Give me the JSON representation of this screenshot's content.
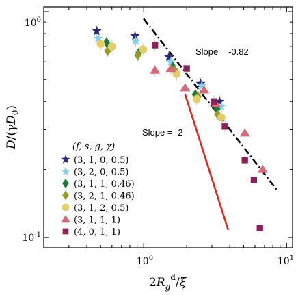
{
  "chart_data": {
    "type": "scatter",
    "title": "",
    "xlabel": "2R_g^d/ξ",
    "ylabel": "D/(γD_0)",
    "xscale": "log",
    "yscale": "log",
    "xlim": [
      0.2,
      11
    ],
    "ylim": [
      0.09,
      1.05
    ],
    "x_ticks": [
      {
        "v": 1,
        "label": "10^0"
      },
      {
        "v": 10,
        "label": "10^1"
      }
    ],
    "y_ticks": [
      {
        "v": 1,
        "label": "10^0"
      },
      {
        "v": 0.1,
        "label": "10^-1"
      }
    ],
    "grid": false,
    "legend": {
      "title": "(f, s, g, χ)",
      "position": "lower-left"
    },
    "series": [
      {
        "name": "(3, 1, 0, 0.5)",
        "marker": "star",
        "color": "#2a2a7a",
        "x": [
          0.47,
          0.87,
          1.5,
          2.5,
          3.4
        ],
        "y": [
          0.82,
          0.78,
          0.63,
          0.48,
          0.4
        ]
      },
      {
        "name": "(3, 2, 0, 0.5)",
        "marker": "star",
        "color": "#87ceeb",
        "x": [
          0.48,
          0.88,
          1.55,
          2.55,
          3.5
        ],
        "y": [
          0.76,
          0.74,
          0.6,
          0.47,
          0.38
        ]
      },
      {
        "name": "(3, 1, 1, 0.46)",
        "marker": "diamond",
        "color": "#1f7a3a",
        "x": [
          0.55,
          0.93,
          1.6,
          2.3,
          3.25
        ],
        "y": [
          0.73,
          0.66,
          0.57,
          0.43,
          0.37
        ]
      },
      {
        "name": "(3, 2, 1, 0.46)",
        "marker": "diamond",
        "color": "#9a9a2a",
        "x": [
          0.56,
          0.91,
          1.65,
          2.4,
          3.3
        ],
        "y": [
          0.67,
          0.64,
          0.55,
          0.42,
          0.35
        ]
      },
      {
        "name": "(3, 1, 2, 0.5)",
        "marker": "circle",
        "color": "#e3cc6a",
        "x": [
          0.5,
          0.6,
          0.99,
          1.7,
          2.35,
          3.5
        ],
        "y": [
          0.72,
          0.7,
          0.68,
          0.53,
          0.41,
          0.34
        ]
      },
      {
        "name": "(3, 1, 1, 1)",
        "marker": "triangle",
        "color": "#d46a7a",
        "x": [
          1.2,
          1.55,
          1.95,
          2.65,
          3.2,
          5.1,
          6.8
        ],
        "y": [
          0.55,
          0.56,
          0.46,
          0.45,
          0.39,
          0.29,
          0.2
        ]
      },
      {
        "name": "(4, 0, 1, 1)",
        "marker": "square",
        "color": "#8a2157",
        "x": [
          1.2,
          2.0,
          3.1,
          3.7,
          5.1,
          5.9,
          6.5
        ],
        "y": [
          0.71,
          0.56,
          0.4,
          0.31,
          0.22,
          0.18,
          0.11
        ]
      }
    ],
    "annotations": [
      {
        "text": "Slope = -0.82",
        "line": {
          "x": [
            1.0,
            8.7
          ],
          "y": [
            0.93,
            0.16
          ]
        },
        "style": "dash-dot",
        "color": "#000000"
      },
      {
        "text": "Slope = -2",
        "line": {
          "x": [
            1.95,
            3.9
          ],
          "y": [
            0.43,
            0.108
          ]
        },
        "style": "solid",
        "color": "#e8231c"
      }
    ]
  }
}
